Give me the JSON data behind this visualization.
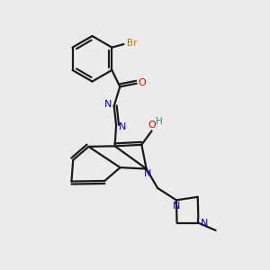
{
  "bg_color": "#ebebeb",
  "bond_color": "#1a1a1a",
  "N_color": "#0000ee",
  "O_color": "#ff0000",
  "Br_color": "#cc7700",
  "H_color": "#2e8b8b",
  "line_width": 1.6,
  "figsize": [
    3.0,
    3.0
  ],
  "dpi": 100,
  "xlim": [
    0,
    10
  ],
  "ylim": [
    0,
    10
  ]
}
